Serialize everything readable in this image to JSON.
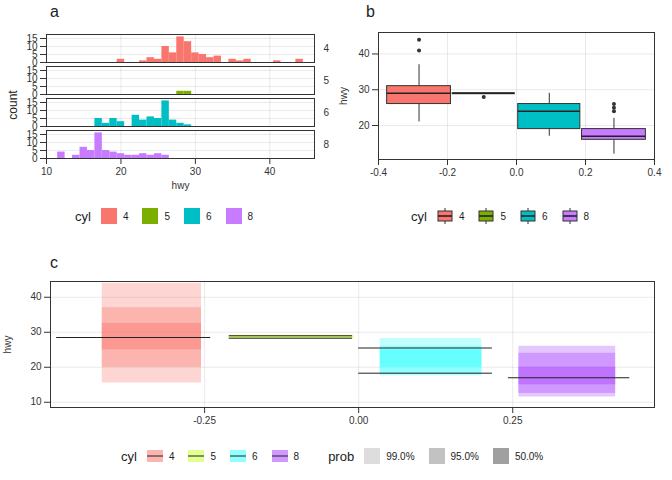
{
  "chart_data": [
    {
      "type": "histogram",
      "title": "a",
      "x_label": "hwy",
      "y_label": "count",
      "legend_title": "cyl",
      "legend": "bottom",
      "grid": true,
      "bins": [
        11.5,
        12.5,
        13.5,
        14.5,
        15.5,
        16.5,
        17.5,
        18.5,
        19.5,
        20.5,
        21.5,
        22.5,
        23.5,
        24.5,
        25.5,
        26.5,
        27.5,
        28.5,
        29.5,
        30.5,
        31.5,
        32.5,
        33.5,
        34.5,
        35.5,
        36.5,
        37.5,
        38.5,
        39.5,
        40.5,
        41.5,
        42.5,
        43.5,
        44.5
      ],
      "series": [
        {
          "name": "4",
          "color": "#F8766D",
          "values": [
            0,
            0,
            0,
            0,
            0,
            0,
            0,
            0,
            2,
            0,
            0,
            1,
            3,
            2,
            10,
            6,
            16,
            13,
            6,
            5,
            3,
            4,
            0,
            2,
            1,
            2,
            0,
            0,
            0,
            1,
            0,
            0,
            2
          ]
        },
        {
          "name": "5",
          "color": "#7CAE00",
          "values": [
            0,
            0,
            0,
            0,
            0,
            0,
            0,
            0,
            0,
            0,
            0,
            0,
            0,
            0,
            0,
            0,
            2,
            2,
            0,
            0,
            0,
            0,
            0,
            0,
            0,
            0,
            0,
            0,
            0,
            0,
            0,
            0,
            0
          ]
        },
        {
          "name": "6",
          "color": "#00BFC4",
          "values": [
            0,
            0,
            0,
            0,
            0,
            5,
            2,
            5,
            3,
            0,
            7,
            4,
            6,
            5,
            16,
            4,
            2,
            1,
            0,
            0,
            0,
            0,
            0,
            0,
            0,
            0,
            0,
            0,
            0,
            0,
            0,
            0,
            0
          ]
        },
        {
          "name": "8",
          "color": "#C77CFF",
          "values": [
            4,
            0,
            2,
            7,
            5,
            16,
            5,
            4,
            3,
            2,
            2,
            3,
            2,
            3,
            2,
            0,
            0,
            0,
            0,
            0,
            0,
            0,
            0,
            0,
            0,
            0,
            0,
            0,
            0,
            0,
            0,
            0,
            0
          ]
        }
      ],
      "xlim": [
        10,
        46
      ],
      "xticks": [
        10,
        20,
        30,
        40
      ],
      "ylim": [
        0,
        17.5
      ],
      "yticks": [
        0,
        5,
        10,
        15
      ]
    },
    {
      "type": "boxplot",
      "title": "b",
      "y_label": "hwy",
      "legend_title": "cyl",
      "legend": "bottom",
      "grid": true,
      "boxes": [
        {
          "name": "4",
          "color": "#F8766D",
          "xmin": -0.375,
          "xmax": -0.19,
          "lower": 21,
          "q1": 26,
          "median": 29,
          "q3": 31,
          "upper": 37,
          "outliers": [
            41,
            44
          ]
        },
        {
          "name": "5",
          "color": "#7CAE00",
          "xmin": -0.185,
          "xmax": -0.005,
          "lower": 28.75,
          "q1": 28.75,
          "median": 29,
          "q3": 29,
          "upper": 29,
          "outliers": [
            28
          ]
        },
        {
          "name": "6",
          "color": "#00BFC4",
          "xmin": 0.005,
          "xmax": 0.185,
          "lower": 17,
          "q1": 19,
          "median": 24,
          "q3": 26,
          "upper": 29,
          "outliers": []
        },
        {
          "name": "8",
          "color": "#C77CFF",
          "xmin": 0.19,
          "xmax": 0.375,
          "lower": 12,
          "q1": 16,
          "median": 17,
          "q3": 19,
          "upper": 22,
          "outliers": [
            24,
            25,
            26
          ]
        }
      ],
      "xlim": [
        -0.4,
        0.4
      ],
      "xticks": [
        -0.4,
        -0.2,
        {
          "value": 0,
          "label": "0.0"
        },
        0.2,
        0.4
      ],
      "ylim": [
        10.5,
        46
      ],
      "yticks": [
        20,
        30,
        40
      ]
    },
    {
      "type": "interval",
      "title": "c",
      "y_label": "hwy",
      "legend_title": "cyl",
      "prob_title": "prob",
      "legend": "bottom",
      "grid": true,
      "probs": [
        {
          "value": 99,
          "label": "99.0%"
        },
        {
          "value": 95,
          "label": "95.0%"
        },
        {
          "value": 50,
          "label": "50.0%"
        }
      ],
      "series": [
        {
          "name": "4",
          "color": "#F8766D",
          "xmin": -0.416,
          "xmax": -0.255,
          "intervals": [
            {
              "prob": 99,
              "low": 15.5,
              "high": 44
            },
            {
              "prob": 95,
              "low": 20,
              "high": 37
            },
            {
              "prob": 50,
              "low": 25,
              "high": 32.5
            }
          ],
          "lines": [
            {
              "y": 28.5,
              "xmin": -0.49,
              "xmax": -0.24
            }
          ]
        },
        {
          "name": "5",
          "color": "#CCFF33",
          "xmin": -0.21,
          "xmax": -0.008,
          "intervals": [
            {
              "prob": 99,
              "low": 28,
              "high": 29.2
            },
            {
              "prob": 95,
              "low": 28.2,
              "high": 29
            },
            {
              "prob": 50,
              "low": 28.5,
              "high": 29
            }
          ],
          "lines": [
            {
              "y": 29,
              "xmin": -0.21,
              "xmax": -0.01
            },
            {
              "y": 28.3,
              "xmin": -0.21,
              "xmax": -0.01
            }
          ]
        },
        {
          "name": "6",
          "color": "#33FFFF",
          "xmin": 0.035,
          "xmax": 0.2,
          "intervals": [
            {
              "prob": 99,
              "low": 17.5,
              "high": 28.2
            },
            {
              "prob": 95,
              "low": 18,
              "high": 26
            },
            {
              "prob": 50,
              "low": 20,
              "high": 25
            }
          ],
          "lines": [
            {
              "y": 25.5,
              "xmin": 0,
              "xmax": 0.217
            },
            {
              "y": 18.3,
              "xmin": 0,
              "xmax": 0.217
            }
          ]
        },
        {
          "name": "8",
          "color": "#AA44FF",
          "xmin": 0.26,
          "xmax": 0.417,
          "intervals": [
            {
              "prob": 99,
              "low": 11.5,
              "high": 26
            },
            {
              "prob": 95,
              "low": 12.5,
              "high": 24
            },
            {
              "prob": 50,
              "low": 15,
              "high": 20
            }
          ],
          "lines": [
            {
              "y": 17,
              "xmin": 0.243,
              "xmax": 0.44
            }
          ]
        }
      ],
      "xlim": [
        -0.5,
        0.48
      ],
      "xticks": [
        -0.25,
        {
          "value": 0,
          "label": "0.00"
        },
        0.25
      ],
      "ylim": [
        8.5,
        44.5
      ],
      "yticks": [
        10,
        20,
        30,
        40
      ]
    }
  ]
}
